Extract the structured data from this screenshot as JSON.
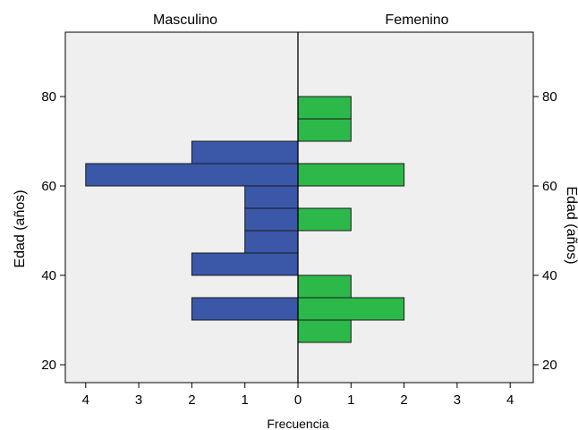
{
  "chart_data": {
    "type": "bar",
    "subtype": "population-pyramid",
    "orientation": "horizontal",
    "panels": [
      "Masculino",
      "Femenino"
    ],
    "xlabel": "Frecuencia",
    "ylabel_left": "Edad (años)",
    "ylabel_right": "Edad (años)",
    "x_ticks": [
      4,
      3,
      2,
      1,
      0,
      1,
      2,
      3,
      4
    ],
    "xlim": [
      0,
      4
    ],
    "y_ticks": [
      20,
      40,
      60,
      80
    ],
    "ylim": [
      15,
      95
    ],
    "bin_width": 5,
    "grid": false,
    "background": "#efefef",
    "series": [
      {
        "panel": "Masculino",
        "color": "#3a57a8",
        "bins": [
          {
            "from": 30,
            "to": 35,
            "value": 2
          },
          {
            "from": 40,
            "to": 45,
            "value": 2
          },
          {
            "from": 45,
            "to": 50,
            "value": 1
          },
          {
            "from": 50,
            "to": 55,
            "value": 1
          },
          {
            "from": 55,
            "to": 60,
            "value": 1
          },
          {
            "from": 60,
            "to": 65,
            "value": 4
          },
          {
            "from": 65,
            "to": 70,
            "value": 2
          }
        ]
      },
      {
        "panel": "Femenino",
        "color": "#2db84a",
        "bins": [
          {
            "from": 25,
            "to": 30,
            "value": 1
          },
          {
            "from": 30,
            "to": 35,
            "value": 2
          },
          {
            "from": 35,
            "to": 40,
            "value": 1
          },
          {
            "from": 50,
            "to": 55,
            "value": 1
          },
          {
            "from": 60,
            "to": 65,
            "value": 2
          },
          {
            "from": 70,
            "to": 75,
            "value": 1
          },
          {
            "from": 75,
            "to": 80,
            "value": 1
          }
        ]
      }
    ]
  }
}
